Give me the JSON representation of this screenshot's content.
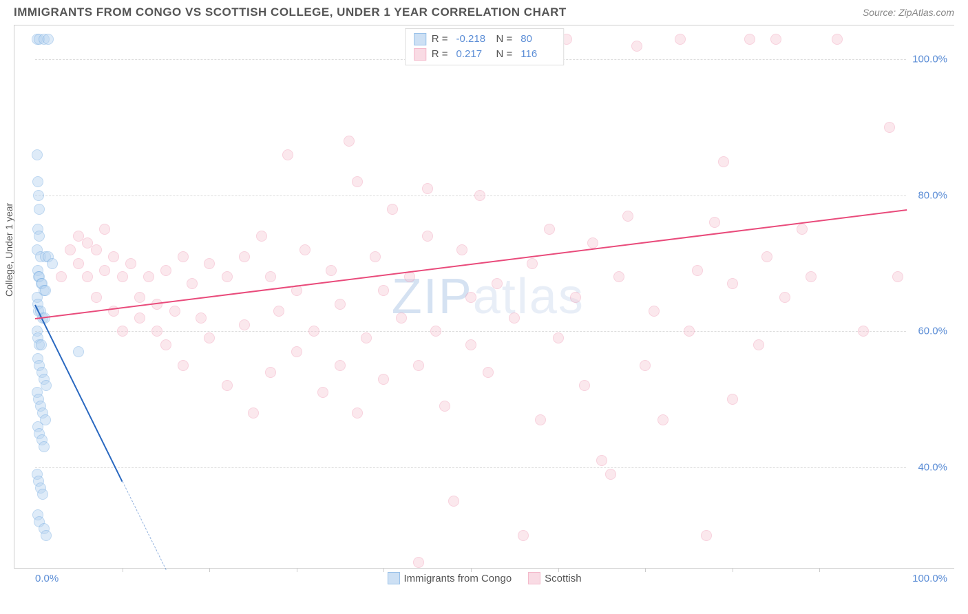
{
  "header": {
    "title": "IMMIGRANTS FROM CONGO VS SCOTTISH COLLEGE, UNDER 1 YEAR CORRELATION CHART",
    "source": "Source: ZipAtlas.com"
  },
  "chart": {
    "type": "scatter",
    "ylabel": "College, Under 1 year",
    "xlim": [
      0,
      100
    ],
    "ylim": [
      25,
      105
    ],
    "xtick_left": "0.0%",
    "xtick_right": "100.0%",
    "yticks": [
      {
        "value": 40,
        "label": "40.0%"
      },
      {
        "value": 60,
        "label": "60.0%"
      },
      {
        "value": 80,
        "label": "80.0%"
      },
      {
        "value": 100,
        "label": "100.0%"
      }
    ],
    "x_minor_ticks": [
      10,
      20,
      30,
      40,
      50,
      60,
      70,
      80,
      90
    ],
    "grid_color": "#dddddd",
    "background_color": "#ffffff",
    "marker_radius": 8,
    "series": [
      {
        "name": "Immigrants from Congo",
        "fill_color": "#b8d4f0",
        "stroke_color": "#6fa8e0",
        "fill_opacity": 0.45,
        "r_value": "-0.218",
        "n_value": "80",
        "trend": {
          "x1": 0,
          "y1": 64,
          "x2": 15,
          "y2": 25,
          "color": "#2968c0",
          "solid_until_x": 10
        },
        "points": [
          [
            0.2,
            103
          ],
          [
            0.5,
            103
          ],
          [
            1.0,
            103
          ],
          [
            1.5,
            103
          ],
          [
            0.2,
            86
          ],
          [
            0.3,
            82
          ],
          [
            0.4,
            80
          ],
          [
            0.5,
            78
          ],
          [
            0.3,
            75
          ],
          [
            0.5,
            74
          ],
          [
            0.2,
            72
          ],
          [
            0.6,
            71
          ],
          [
            1.2,
            71
          ],
          [
            1.5,
            71
          ],
          [
            2.0,
            70
          ],
          [
            0.3,
            69
          ],
          [
            0.4,
            68
          ],
          [
            0.5,
            68
          ],
          [
            0.7,
            67
          ],
          [
            0.8,
            67
          ],
          [
            1.0,
            66
          ],
          [
            1.2,
            66
          ],
          [
            0.2,
            65
          ],
          [
            0.3,
            64
          ],
          [
            0.4,
            63
          ],
          [
            0.6,
            63
          ],
          [
            0.9,
            62
          ],
          [
            1.1,
            62
          ],
          [
            0.2,
            60
          ],
          [
            0.3,
            59
          ],
          [
            0.5,
            58
          ],
          [
            0.7,
            58
          ],
          [
            5.0,
            57
          ],
          [
            0.3,
            56
          ],
          [
            0.5,
            55
          ],
          [
            0.8,
            54
          ],
          [
            1.0,
            53
          ],
          [
            1.3,
            52
          ],
          [
            0.2,
            51
          ],
          [
            0.4,
            50
          ],
          [
            0.6,
            49
          ],
          [
            0.9,
            48
          ],
          [
            1.2,
            47
          ],
          [
            0.3,
            46
          ],
          [
            0.5,
            45
          ],
          [
            0.8,
            44
          ],
          [
            1.0,
            43
          ],
          [
            0.2,
            39
          ],
          [
            0.4,
            38
          ],
          [
            0.6,
            37
          ],
          [
            0.9,
            36
          ],
          [
            0.3,
            33
          ],
          [
            0.5,
            32
          ],
          [
            1.0,
            31
          ],
          [
            1.3,
            30
          ]
        ]
      },
      {
        "name": "Scottish",
        "fill_color": "#f7cdd9",
        "stroke_color": "#f09bb5",
        "fill_opacity": 0.45,
        "r_value": "0.217",
        "n_value": "116",
        "trend": {
          "x1": 0,
          "y1": 62,
          "x2": 100,
          "y2": 78,
          "color": "#e94b7b",
          "solid_until_x": 100
        },
        "points": [
          [
            3,
            68
          ],
          [
            4,
            72
          ],
          [
            5,
            74
          ],
          [
            5,
            70
          ],
          [
            6,
            73
          ],
          [
            6,
            68
          ],
          [
            7,
            72
          ],
          [
            7,
            65
          ],
          [
            8,
            69
          ],
          [
            8,
            75
          ],
          [
            9,
            71
          ],
          [
            9,
            63
          ],
          [
            10,
            68
          ],
          [
            10,
            60
          ],
          [
            11,
            70
          ],
          [
            12,
            65
          ],
          [
            12,
            62
          ],
          [
            13,
            68
          ],
          [
            14,
            64
          ],
          [
            14,
            60
          ],
          [
            15,
            69
          ],
          [
            15,
            58
          ],
          [
            16,
            63
          ],
          [
            17,
            71
          ],
          [
            17,
            55
          ],
          [
            18,
            67
          ],
          [
            19,
            62
          ],
          [
            20,
            70
          ],
          [
            20,
            59
          ],
          [
            22,
            68
          ],
          [
            22,
            52
          ],
          [
            24,
            71
          ],
          [
            24,
            61
          ],
          [
            25,
            48
          ],
          [
            26,
            74
          ],
          [
            27,
            68
          ],
          [
            27,
            54
          ],
          [
            28,
            63
          ],
          [
            29,
            86
          ],
          [
            30,
            57
          ],
          [
            30,
            66
          ],
          [
            31,
            72
          ],
          [
            32,
            60
          ],
          [
            33,
            51
          ],
          [
            34,
            69
          ],
          [
            35,
            64
          ],
          [
            35,
            55
          ],
          [
            36,
            88
          ],
          [
            37,
            82
          ],
          [
            37,
            48
          ],
          [
            38,
            59
          ],
          [
            39,
            71
          ],
          [
            40,
            66
          ],
          [
            40,
            53
          ],
          [
            41,
            78
          ],
          [
            42,
            62
          ],
          [
            43,
            68
          ],
          [
            44,
            55
          ],
          [
            44,
            26
          ],
          [
            45,
            74
          ],
          [
            45,
            81
          ],
          [
            46,
            60
          ],
          [
            47,
            49
          ],
          [
            48,
            35
          ],
          [
            49,
            72
          ],
          [
            50,
            58
          ],
          [
            50,
            65
          ],
          [
            51,
            80
          ],
          [
            52,
            54
          ],
          [
            53,
            67
          ],
          [
            54,
            102
          ],
          [
            55,
            62
          ],
          [
            56,
            103
          ],
          [
            56,
            30
          ],
          [
            57,
            70
          ],
          [
            58,
            47
          ],
          [
            59,
            75
          ],
          [
            60,
            59
          ],
          [
            60,
            102
          ],
          [
            61,
            103
          ],
          [
            62,
            65
          ],
          [
            63,
            52
          ],
          [
            64,
            73
          ],
          [
            65,
            41
          ],
          [
            66,
            39
          ],
          [
            67,
            68
          ],
          [
            68,
            77
          ],
          [
            69,
            102
          ],
          [
            70,
            55
          ],
          [
            71,
            63
          ],
          [
            72,
            47
          ],
          [
            74,
            103
          ],
          [
            75,
            60
          ],
          [
            76,
            69
          ],
          [
            77,
            30
          ],
          [
            78,
            76
          ],
          [
            79,
            85
          ],
          [
            80,
            50
          ],
          [
            80,
            67
          ],
          [
            82,
            103
          ],
          [
            83,
            58
          ],
          [
            84,
            71
          ],
          [
            85,
            103
          ],
          [
            86,
            65
          ],
          [
            88,
            75
          ],
          [
            89,
            68
          ],
          [
            92,
            103
          ],
          [
            95,
            60
          ],
          [
            98,
            90
          ],
          [
            99,
            68
          ]
        ]
      }
    ],
    "watermark": {
      "part1": "ZIP",
      "part2": "atlas"
    }
  },
  "bottom_legend": [
    {
      "label": "Immigrants from Congo",
      "fill": "#b8d4f0",
      "stroke": "#6fa8e0"
    },
    {
      "label": "Scottish",
      "fill": "#f7cdd9",
      "stroke": "#f09bb5"
    }
  ]
}
